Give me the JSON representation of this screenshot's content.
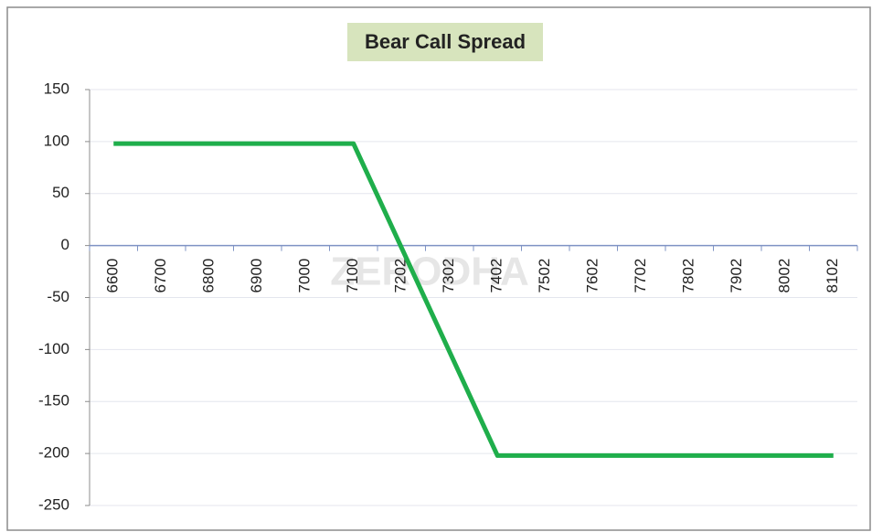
{
  "chart_data": {
    "type": "line",
    "title": "Bear Call Spread",
    "watermark": "ZERODHA",
    "categories": [
      "6600",
      "6700",
      "6800",
      "6900",
      "7000",
      "7100",
      "7202",
      "7302",
      "7402",
      "7502",
      "7602",
      "7702",
      "7802",
      "7902",
      "8002",
      "8102"
    ],
    "series": [
      {
        "name": "Bear Call Spread",
        "color": "#1fae4b",
        "values": [
          98,
          98,
          98,
          98,
          98,
          98,
          -2,
          -102,
          -202,
          -202,
          -202,
          -202,
          -202,
          -202,
          -202,
          -202
        ]
      }
    ],
    "ylim": [
      -250,
      150
    ],
    "yticks": [
      -250,
      -200,
      -150,
      -100,
      -50,
      0,
      50,
      100,
      150
    ],
    "grid": true
  }
}
